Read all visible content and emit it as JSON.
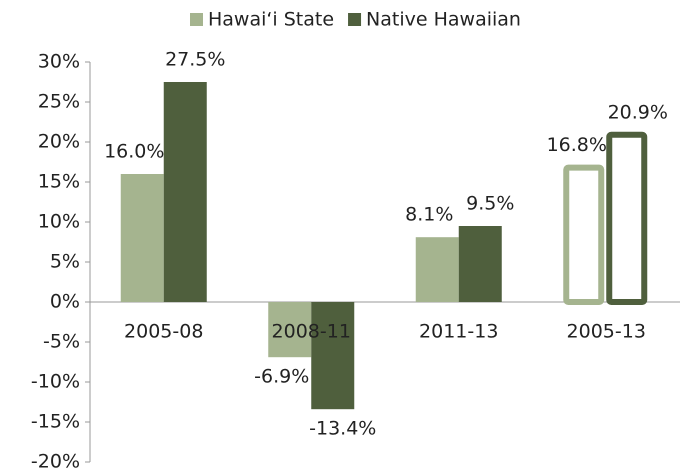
{
  "chart_data": {
    "type": "bar",
    "categories": [
      "2005-08",
      "2008-11",
      "2011-13",
      "2005-13"
    ],
    "category_styles": [
      "filled",
      "filled",
      "filled",
      "outline"
    ],
    "series": [
      {
        "name": "Hawai‘i State",
        "color": "#a5b48f",
        "values": [
          16.0,
          -6.9,
          8.1,
          16.8
        ],
        "value_labels": [
          "16.0%",
          "-6.9%",
          "8.1%",
          "16.8%"
        ]
      },
      {
        "name": "Native Hawaiian",
        "color": "#4f5f3d",
        "values": [
          27.5,
          -13.4,
          9.5,
          20.9
        ],
        "value_labels": [
          "27.5%",
          "-13.4%",
          "9.5%",
          "20.9%"
        ]
      }
    ],
    "ylim": [
      -20,
      30
    ],
    "yticks": [
      {
        "value": -20,
        "label": "-20%"
      },
      {
        "value": -15,
        "label": "-15%"
      },
      {
        "value": -10,
        "label": "-10%"
      },
      {
        "value": -5,
        "label": "-5%"
      },
      {
        "value": 0,
        "label": "0%"
      },
      {
        "value": 5,
        "label": "5%"
      },
      {
        "value": 10,
        "label": "10%"
      },
      {
        "value": 15,
        "label": "15%"
      },
      {
        "value": 20,
        "label": "20%"
      },
      {
        "value": 25,
        "label": "25%"
      },
      {
        "value": 30,
        "label": "30%"
      }
    ],
    "legend": "top"
  }
}
